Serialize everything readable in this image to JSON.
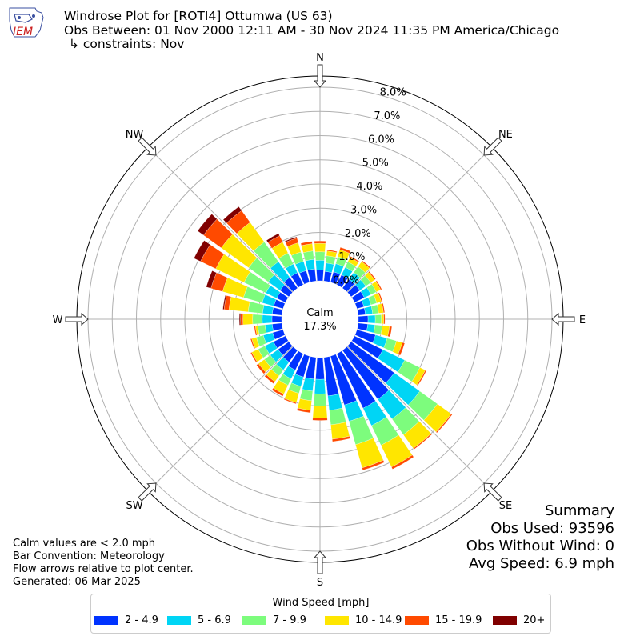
{
  "header": {
    "logo_text": "IEM",
    "title": "Windrose Plot for [ROTI4] Ottumwa (US 63)",
    "subtitle": "Obs Between: 01 Nov 2000 12:11 AM - 30 Nov 2024 11:35 PM America/Chicago",
    "constraints": "↳ constraints: Nov"
  },
  "calm": {
    "label": "Calm",
    "value": "17.3%"
  },
  "notes": {
    "calm_note": "Calm values are < 2.0 mph",
    "bar_convention": "Bar Convention: Meteorology",
    "flow_note": "Flow arrows relative to plot center.",
    "generated": "Generated: 06 Mar 2025"
  },
  "summary": {
    "title": "Summary",
    "obs_used": "Obs Used: 93596",
    "obs_without_wind": "Obs Without Wind: 0",
    "avg_speed": "Avg Speed: 6.9 mph"
  },
  "legend": {
    "title": "Wind Speed [mph]",
    "items": [
      {
        "label": "2 - 4.9",
        "color": "#0033ff"
      },
      {
        "label": "5 - 6.9",
        "color": "#00d5f5"
      },
      {
        "label": "7 - 9.9",
        "color": "#7dfc7d"
      },
      {
        "label": "10 - 14.9",
        "color": "#ffe600"
      },
      {
        "label": "15 - 19.9",
        "color": "#ff4a00"
      },
      {
        "label": "20+",
        "color": "#800000"
      }
    ]
  },
  "chart_data": {
    "type": "windrose",
    "radial_ticks": [
      "0.0%",
      "1.0%",
      "2.0%",
      "3.0%",
      "4.0%",
      "5.0%",
      "6.0%",
      "7.0%",
      "8.0%"
    ],
    "radial_max": 8.5,
    "compass_labels": [
      "N",
      "NE",
      "E",
      "SE",
      "S",
      "SW",
      "W",
      "NW"
    ],
    "direction_degrees": [
      0,
      10,
      20,
      30,
      40,
      50,
      60,
      70,
      80,
      90,
      100,
      110,
      120,
      130,
      140,
      150,
      160,
      170,
      180,
      190,
      200,
      210,
      220,
      230,
      240,
      250,
      260,
      270,
      280,
      290,
      300,
      310,
      320,
      330,
      340,
      350
    ],
    "speed_bins": [
      "2 - 4.9",
      "5 - 6.9",
      "7 - 9.9",
      "10 - 14.9",
      "15 - 19.9",
      "20+"
    ],
    "series": [
      {
        "name": "2 - 4.9",
        "values": [
          0.45,
          0.4,
          0.45,
          0.45,
          0.45,
          0.45,
          0.45,
          0.3,
          0.3,
          0.4,
          0.4,
          0.8,
          1.3,
          2.2,
          2.5,
          2.5,
          2.1,
          1.6,
          0.9,
          0.9,
          0.9,
          0.75,
          0.6,
          0.55,
          0.55,
          0.45,
          0.4,
          0.4,
          0.4,
          0.4,
          0.4,
          0.45,
          0.55,
          0.55,
          0.5,
          0.5
        ]
      },
      {
        "name": "5 - 6.9",
        "values": [
          0.4,
          0.35,
          0.35,
          0.35,
          0.35,
          0.3,
          0.3,
          0.3,
          0.3,
          0.3,
          0.3,
          0.5,
          1.0,
          1.3,
          1.0,
          0.8,
          0.7,
          0.6,
          0.6,
          0.5,
          0.4,
          0.4,
          0.4,
          0.4,
          0.4,
          0.4,
          0.3,
          0.4,
          0.4,
          0.5,
          0.5,
          0.6,
          0.8,
          0.4,
          0.4,
          0.4
        ]
      },
      {
        "name": "7 - 9.9",
        "values": [
          0.35,
          0.3,
          0.3,
          0.25,
          0.3,
          0.25,
          0.25,
          0.25,
          0.25,
          0.25,
          0.3,
          0.4,
          0.7,
          0.9,
          0.8,
          0.9,
          1.0,
          0.6,
          0.5,
          0.4,
          0.3,
          0.3,
          0.3,
          0.3,
          0.3,
          0.3,
          0.3,
          0.4,
          0.6,
          0.8,
          1.0,
          1.0,
          1.0,
          0.5,
          0.4,
          0.35
        ]
      },
      {
        "name": "10 - 14.9",
        "values": [
          0.35,
          0.2,
          0.3,
          0.2,
          0.25,
          0.2,
          0.2,
          0.2,
          0.2,
          0.1,
          0.3,
          0.25,
          0.25,
          0.7,
          0.7,
          1.0,
          1.0,
          0.6,
          0.5,
          0.4,
          0.4,
          0.4,
          0.3,
          0.3,
          0.3,
          0.2,
          0.1,
          0.4,
          0.8,
          0.9,
          1.3,
          1.4,
          1.0,
          0.5,
          0.4,
          0.3
        ]
      },
      {
        "name": "15 - 19.9",
        "values": [
          0.1,
          0.05,
          0.1,
          0.05,
          0.05,
          0.05,
          0.05,
          0.05,
          0.05,
          0.05,
          0.1,
          0.1,
          0.05,
          0.05,
          0.05,
          0.1,
          0.1,
          0.1,
          0.1,
          0.1,
          0.05,
          0.1,
          0.1,
          0.1,
          0.05,
          0.05,
          0.05,
          0.1,
          0.2,
          0.5,
          0.7,
          0.9,
          0.6,
          0.3,
          0.2,
          0.1
        ]
      },
      {
        "name": "20+",
        "values": [
          0.0,
          0.0,
          0.0,
          0.0,
          0.0,
          0.0,
          0.0,
          0.0,
          0.0,
          0.0,
          0.0,
          0.0,
          0.0,
          0.0,
          0.0,
          0.0,
          0.0,
          0.0,
          0.0,
          0.0,
          0.0,
          0.0,
          0.0,
          0.0,
          0.0,
          0.0,
          0.0,
          0.05,
          0.05,
          0.2,
          0.3,
          0.3,
          0.2,
          0.1,
          0.05,
          0.0
        ]
      }
    ]
  }
}
